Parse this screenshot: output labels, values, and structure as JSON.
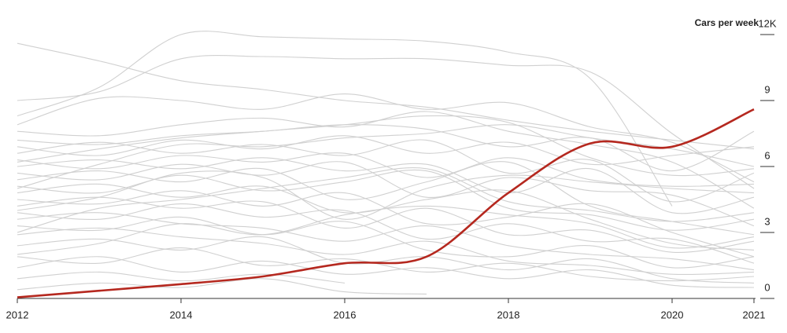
{
  "chart_data": {
    "type": "line",
    "y_label": "Cars per week",
    "x": [
      2012,
      2013,
      2014,
      2015,
      2016,
      2017,
      2018,
      2019,
      2020,
      2021
    ],
    "xlim": [
      2012,
      2021
    ],
    "xticks": [
      2012,
      2014,
      2016,
      2018,
      2020,
      2021
    ],
    "ylim": [
      0,
      12
    ],
    "yticks": [
      0,
      3,
      6,
      9,
      {
        "value": 12,
        "label": "12K"
      }
    ],
    "series": [
      {
        "color": "#d0d0d0",
        "values": [
          11.6,
          10.8,
          9.9,
          9.5,
          9.0,
          8.7,
          8.1,
          7.6,
          7.2,
          6.8
        ]
      },
      {
        "color": "#d0d0d0",
        "values": [
          8.3,
          9.6,
          12.0,
          11.9,
          11.8,
          11.7,
          11.2,
          10.0,
          4.2,
          null
        ]
      },
      {
        "color": "#d0d0d0",
        "values": [
          9.0,
          9.4,
          10.9,
          11.0,
          10.9,
          10.9,
          10.6,
          10.3,
          7.5,
          5.0
        ]
      },
      {
        "color": "#d0d0d0",
        "values": [
          7.9,
          9.1,
          9.0,
          8.6,
          9.3,
          8.6,
          8.9,
          7.8,
          7.1,
          5.3
        ]
      },
      {
        "color": "#d0d0d0",
        "values": [
          7.6,
          7.4,
          7.9,
          8.2,
          7.8,
          8.5,
          7.6,
          7.0,
          6.2,
          4.1
        ]
      },
      {
        "color": "#d0d0d0",
        "values": [
          7.2,
          7.0,
          7.4,
          7.6,
          7.9,
          7.7,
          6.9,
          7.3,
          5.8,
          7.6
        ]
      },
      {
        "color": "#d0d0d0",
        "values": [
          6.9,
          6.5,
          7.2,
          6.8,
          7.4,
          6.6,
          7.1,
          6.1,
          6.5,
          6.9
        ]
      },
      {
        "color": "#d0d0d0",
        "values": [
          6.6,
          7.1,
          6.6,
          7.0,
          6.5,
          7.2,
          5.7,
          6.3,
          4.4,
          5.7
        ]
      },
      {
        "color": "#d0d0d0",
        "values": [
          6.3,
          5.9,
          6.5,
          6.2,
          6.6,
          5.5,
          6.4,
          5.4,
          5.1,
          5.2
        ]
      },
      {
        "color": "#d0d0d0",
        "values": [
          6.0,
          6.3,
          5.9,
          6.4,
          5.8,
          6.1,
          4.8,
          5.9,
          3.9,
          4.6
        ]
      },
      {
        "color": "#d0d0d0",
        "values": [
          5.7,
          5.4,
          6.1,
          5.6,
          6.2,
          4.6,
          5.5,
          4.9,
          4.7,
          3.3
        ]
      },
      {
        "color": "#d0d0d0",
        "values": [
          5.4,
          5.8,
          5.3,
          5.9,
          4.5,
          5.3,
          6.2,
          4.2,
          3.5,
          2.9
        ]
      },
      {
        "color": "#d0d0d0",
        "values": [
          5.1,
          4.8,
          5.6,
          4.9,
          5.3,
          5.8,
          4.1,
          3.8,
          3.1,
          3.6
        ]
      },
      {
        "color": "#d0d0d0",
        "values": [
          4.8,
          5.2,
          4.6,
          5.1,
          3.9,
          4.5,
          4.9,
          3.6,
          2.5,
          2.2
        ]
      },
      {
        "color": "#d0d0d0",
        "values": [
          4.5,
          4.3,
          4.9,
          4.2,
          4.8,
          3.4,
          3.7,
          4.3,
          3.0,
          1.9
        ]
      },
      {
        "color": "#d0d0d0",
        "values": [
          4.2,
          4.6,
          4.1,
          4.4,
          3.2,
          4.1,
          2.9,
          3.1,
          2.1,
          2.6
        ]
      },
      {
        "color": "#d0d0d0",
        "values": [
          3.9,
          3.6,
          4.3,
          3.7,
          4.0,
          2.7,
          3.4,
          2.6,
          2.7,
          1.6
        ]
      },
      {
        "color": "#d0d0d0",
        "values": [
          3.6,
          3.9,
          3.4,
          3.2,
          2.6,
          3.3,
          2.4,
          2.0,
          1.8,
          1.3
        ]
      },
      {
        "color": "#d0d0d0",
        "values": [
          3.3,
          3.1,
          3.7,
          2.9,
          3.5,
          2.2,
          1.9,
          2.4,
          1.4,
          1.9
        ]
      },
      {
        "color": "#d0d0d0",
        "values": [
          2.9,
          3.2,
          2.8,
          2.5,
          2.0,
          2.6,
          1.7,
          1.5,
          1.1,
          1.2
        ]
      },
      {
        "color": "#d0d0d0",
        "values": [
          2.4,
          2.7,
          2.2,
          2.8,
          1.6,
          1.9,
          1.3,
          1.8,
          0.9,
          0.7
        ]
      },
      {
        "color": "#d0d0d0",
        "values": [
          1.9,
          1.6,
          2.3,
          1.5,
          1.8,
          1.2,
          1.6,
          1.0,
          0.8,
          1.0
        ]
      },
      {
        "color": "#d0d0d0",
        "values": [
          1.4,
          1.9,
          1.2,
          1.7,
          1.1,
          1.4,
          0.9,
          1.3,
          0.6,
          0.5
        ]
      },
      {
        "color": "#d0d0d0",
        "values": [
          0.9,
          1.2,
          0.8,
          1.1,
          0.7,
          null,
          null,
          null,
          null,
          null
        ]
      },
      {
        "color": "#d0d0d0",
        "values": [
          0.4,
          0.7,
          0.5,
          0.9,
          0.3,
          0.2,
          null,
          null,
          null,
          null
        ]
      },
      {
        "color": "#d0d0d0",
        "values": [
          6.2,
          6.8,
          7.3,
          7.6,
          7.9,
          8.3,
          8.0,
          6.4,
          5.6,
          5.9
        ]
      },
      {
        "color": "#d0d0d0",
        "values": [
          5.0,
          6.1,
          7.0,
          6.9,
          7.3,
          7.5,
          7.9,
          7.3,
          6.8,
          6.0
        ]
      },
      {
        "color": "#d0d0d0",
        "values": [
          4.0,
          4.6,
          5.7,
          5.5,
          3.6,
          5.0,
          5.6,
          5.3,
          5.0,
          4.8
        ]
      },
      {
        "color": "#d0d0d0",
        "values": [
          3.0,
          4.1,
          4.5,
          5.0,
          5.5,
          5.9,
          4.4,
          4.0,
          3.5,
          3.9
        ]
      },
      {
        "color": "#d0d0d0",
        "values": [
          2.0,
          2.5,
          3.4,
          2.9,
          3.8,
          4.2,
          3.8,
          3.4,
          2.3,
          2.8
        ]
      },
      {
        "color": "#b5281f",
        "values": [
          0.05,
          0.35,
          0.65,
          1.0,
          1.6,
          1.9,
          4.8,
          7.05,
          6.9,
          8.6
        ]
      }
    ]
  }
}
